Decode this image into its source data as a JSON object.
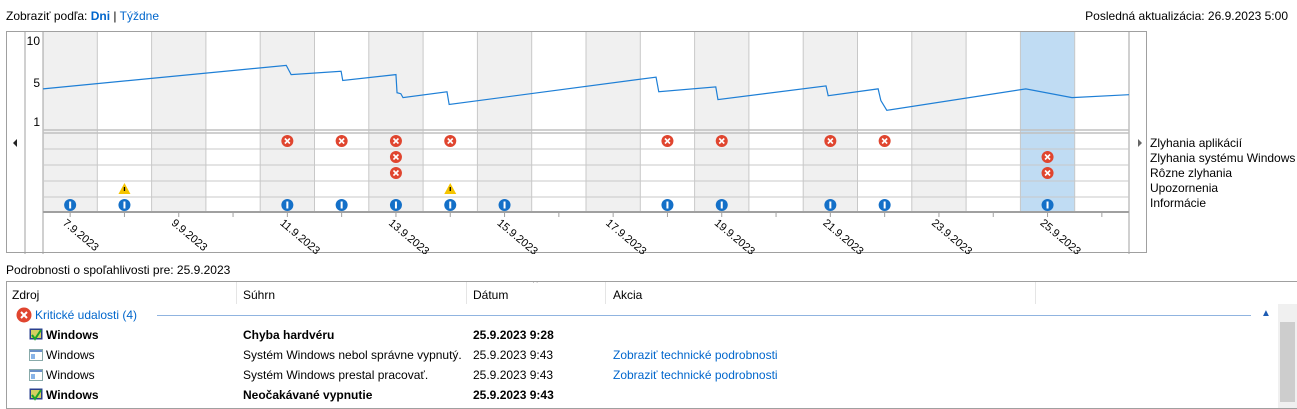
{
  "header": {
    "view_by_label": "Zobraziť podľa:",
    "view_days": "Dni",
    "separator": "|",
    "view_weeks": "Týždne",
    "last_updated": "Posledná aktualizácia: 26.9.2023 5:00"
  },
  "chart_data": {
    "type": "line",
    "y_ticks": [
      "10",
      "5",
      "1"
    ],
    "ylim": [
      1,
      10
    ],
    "x_days": [
      "7.9",
      "8.9",
      "9.9",
      "10.9",
      "11.9",
      "12.9",
      "13.9",
      "14.9",
      "15.9",
      "16.9",
      "17.9",
      "18.9",
      "19.9",
      "20.9",
      "21.9",
      "22.9",
      "23.9",
      "24.9",
      "25.9",
      "26.9"
    ],
    "x_tick_labels": [
      "7.9.2023",
      "9.9.2023",
      "11.9.2023",
      "13.9.2023",
      "15.9.2023",
      "17.9.2023",
      "19.9.2023",
      "21.9.2023",
      "23.9.2023",
      "25.9.2023"
    ],
    "selected_day": "25.9",
    "stability_index": [
      [
        7.0,
        4.4
      ],
      [
        11.48,
        7.1
      ],
      [
        11.57,
        6.0
      ],
      [
        12.49,
        6.4
      ],
      [
        12.52,
        5.3
      ],
      [
        13.5,
        6.0
      ],
      [
        13.52,
        4.0
      ],
      [
        13.59,
        3.9
      ],
      [
        13.63,
        3.5
      ],
      [
        14.44,
        4.1
      ],
      [
        14.48,
        2.8
      ],
      [
        18.29,
        5.7
      ],
      [
        18.34,
        4.1
      ],
      [
        19.39,
        4.6
      ],
      [
        19.43,
        3.3
      ],
      [
        21.42,
        4.7
      ],
      [
        21.46,
        3.7
      ],
      [
        22.38,
        4.4
      ],
      [
        22.43,
        3.2
      ],
      [
        22.54,
        2.2
      ],
      [
        25.1,
        4.4
      ],
      [
        25.95,
        3.5
      ],
      [
        27.0,
        3.8
      ]
    ],
    "event_rows": [
      {
        "name": "Zlyhania aplikácií",
        "icon": "error",
        "days": [
          "11.9",
          "12.9",
          "13.9",
          "14.9",
          "18.9",
          "19.9",
          "21.9",
          "22.9"
        ]
      },
      {
        "name": "Zlyhania systému Windows",
        "icon": "error",
        "days": [
          "13.9",
          "25.9"
        ]
      },
      {
        "name": "Rôzne zlyhania",
        "icon": "error",
        "days": [
          "13.9",
          "25.9"
        ]
      },
      {
        "name": "Upozornenia",
        "icon": "warning",
        "days": [
          "8.9",
          "14.9"
        ]
      },
      {
        "name": "Informácie",
        "icon": "info",
        "days": [
          "7.9",
          "8.9",
          "11.9",
          "12.9",
          "13.9",
          "14.9",
          "15.9",
          "18.9",
          "19.9",
          "21.9",
          "22.9",
          "25.9"
        ]
      }
    ],
    "colors": {
      "line": "#1e7fd6",
      "shade": "#f0f0f0",
      "selected": "#c0dcf3",
      "error": "#e0452f",
      "warning": "#f5c400",
      "info": "#1470c8"
    }
  },
  "details": {
    "title": "Podrobnosti o spoľahlivosti pre: 25.9.2023",
    "columns": [
      "Zdroj",
      "Súhrn",
      "Dátum",
      "Akcia"
    ],
    "group": "Kritické udalosti (4)",
    "rows": [
      {
        "source": "Windows",
        "summary": "Chyba hardvéru",
        "date": "25.9.2023 9:28",
        "action": "",
        "bold": true,
        "icon": "monitor-check-icon"
      },
      {
        "source": "Windows",
        "summary": "Systém Windows nebol správne vypnutý.",
        "date": "25.9.2023 9:43",
        "action": "Zobraziť technické podrobnosti",
        "bold": false,
        "icon": "window-icon"
      },
      {
        "source": "Windows",
        "summary": "Systém Windows prestal pracovať.",
        "date": "25.9.2023 9:43",
        "action": "Zobraziť technické podrobnosti",
        "bold": false,
        "icon": "window-icon"
      },
      {
        "source": "Windows",
        "summary": "Neočakávané vypnutie",
        "date": "25.9.2023 9:43",
        "action": "",
        "bold": true,
        "icon": "monitor-check-icon"
      }
    ]
  }
}
